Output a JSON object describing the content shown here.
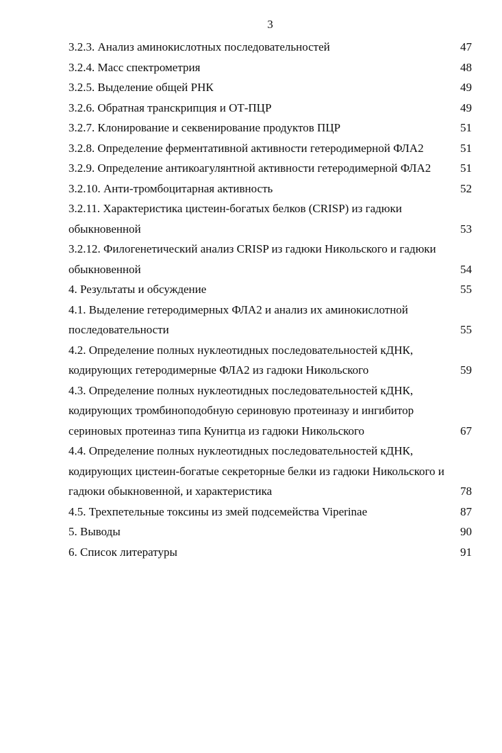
{
  "page": {
    "number": "3",
    "background_color": "#ffffff",
    "text_color": "#0d0d0d"
  },
  "toc": {
    "entries": [
      {
        "lines": [
          "3.2.3. Анализ аминокислотных последовательностей"
        ],
        "page": "47"
      },
      {
        "lines": [
          "3.2.4. Масс спектрометрия"
        ],
        "page": "48"
      },
      {
        "lines": [
          "3.2.5. Выделение общей РНК"
        ],
        "page": "49"
      },
      {
        "lines": [
          "3.2.6. Обратная транскрипция и ОТ-ПЦР"
        ],
        "page": "49"
      },
      {
        "lines": [
          "3.2.7. Клонирование и секвенирование продуктов ПЦР"
        ],
        "page": "51"
      },
      {
        "lines": [
          "3.2.8. Определение ферментативной активности гетеродимерной ФЛА2"
        ],
        "page": "51"
      },
      {
        "lines": [
          "3.2.9. Определение антикоагулянтной активности гетеродимерной ФЛА2"
        ],
        "page": "51"
      },
      {
        "lines": [
          "3.2.10. Анти-тромбоцитарная активность"
        ],
        "page": "52"
      },
      {
        "lines": [
          "3.2.11. Характеристика цистеин-богатых белков (CRISP) из гадюки",
          "обыкновенной"
        ],
        "page": "53"
      },
      {
        "lines": [
          "3.2.12. Филогенетический анализ CRISP из гадюки Никольского и гадюки",
          "обыкновенной"
        ],
        "page": "54"
      },
      {
        "lines": [
          "4. Результаты и обсуждение"
        ],
        "page": "55"
      },
      {
        "lines": [
          "4.1. Выделение гетеродимерных ФЛА2 и анализ их аминокислотной",
          "последовательности"
        ],
        "page": "55"
      },
      {
        "lines": [
          "4.2. Определение полных нуклеотидных последовательностей кДНК,",
          "кодирующих гетеродимерные ФЛА2 из гадюки Никольского"
        ],
        "page": "59"
      },
      {
        "lines": [
          "4.3. Определение полных нуклеотидных последовательностей кДНК,",
          "кодирующих тромбиноподобную сериновую протеиназу и ингибитор",
          "сериновых протеиназ типа Кунитца из гадюки Никольского"
        ],
        "page": "67"
      },
      {
        "lines": [
          "4.4. Определение полных нуклеотидных последовательностей кДНК,",
          "кодирующих цистеин-богатые секреторные белки из гадюки Никольского и",
          "гадюки обыкновенной, и характеристика"
        ],
        "page": "78"
      },
      {
        "lines": [
          "4.5. Трехпетельные токсины из змей подсемейства Viperinae"
        ],
        "page": "87"
      },
      {
        "lines": [
          "5. Выводы"
        ],
        "page": "90"
      },
      {
        "lines": [
          "6. Список литературы"
        ],
        "page": "91"
      }
    ]
  }
}
